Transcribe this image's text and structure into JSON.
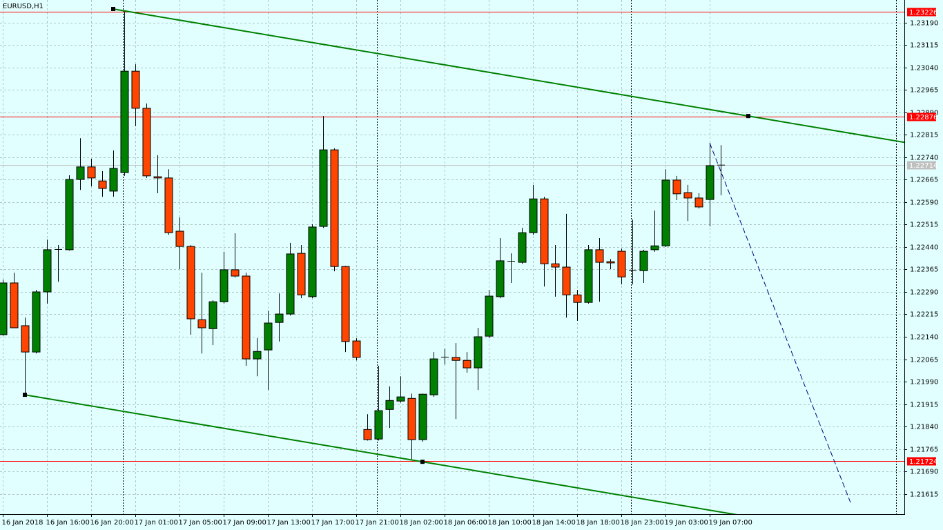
{
  "chart_data": {
    "type": "candlestick",
    "title": "EURUSD,H1",
    "categories": [
      "16 Jan 2018",
      null,
      null,
      null,
      "16 Jan 16:00",
      null,
      null,
      null,
      "16 Jan 20:00",
      null,
      null,
      null,
      "17 Jan 01:00",
      null,
      null,
      null,
      "17 Jan 05:00",
      null,
      null,
      null,
      "17 Jan 09:00",
      null,
      null,
      null,
      "17 Jan 13:00",
      null,
      null,
      null,
      "17 Jan 17:00",
      null,
      null,
      null,
      "17 Jan 21:00",
      null,
      null,
      null,
      "18 Jan 02:00",
      null,
      null,
      null,
      "18 Jan 06:00",
      null,
      null,
      null,
      "18 Jan 10:00",
      null,
      null,
      null,
      "18 Jan 14:00",
      null,
      null,
      null,
      "18 Jan 18:00",
      null,
      null,
      null,
      "18 Jan 23:00",
      null,
      null,
      null,
      "19 Jan 03:00",
      null,
      null,
      null,
      "19 Jan 07:00",
      null
    ],
    "open": [
      1.22147,
      1.2232,
      1.22177,
      1.22089,
      1.2229,
      1.22431,
      1.22431,
      1.22666,
      1.22708,
      1.22661,
      1.22627,
      1.22689,
      1.23028,
      1.22904,
      1.22675,
      1.22671,
      1.22493,
      1.22442,
      1.22197,
      1.22167,
      1.22257,
      1.22364,
      1.22343,
      1.22066,
      1.22096,
      1.22188,
      1.22216,
      1.22419,
      1.22274,
      1.22509,
      1.22765,
      1.22375,
      1.22126,
      1.2183,
      1.21798,
      1.21897,
      1.21925,
      1.21934,
      1.21796,
      1.21946,
      1.22071,
      1.22071,
      1.22061,
      1.22036,
      1.22142,
      1.22274,
      1.22394,
      1.22389,
      1.22488,
      1.22601,
      1.22384,
      1.22373,
      1.2228,
      1.22255,
      1.22431,
      1.22391,
      1.22426,
      1.22361,
      1.22361,
      1.22431,
      1.22444,
      1.22664,
      1.22622,
      1.22604,
      1.22599,
      1.22714
    ],
    "high": [
      1.22331,
      1.22354,
      1.22204,
      1.22297,
      1.22465,
      1.22447,
      1.2268,
      1.22804,
      1.22735,
      1.22694,
      1.22763,
      1.2323,
      1.23051,
      1.2292,
      1.22747,
      1.227,
      1.22539,
      1.22447,
      1.22354,
      1.22262,
      1.22424,
      1.22486,
      1.22354,
      1.22135,
      1.22227,
      1.22285,
      1.22454,
      1.22447,
      1.22516,
      1.22878,
      1.2277,
      1.22377,
      1.22135,
      1.21881,
      1.22043,
      1.21974,
      1.22008,
      1.2195,
      1.2195,
      1.22089,
      1.221,
      1.22119,
      1.22089,
      1.2217,
      1.22297,
      1.2247,
      1.22419,
      1.22504,
      1.22648,
      1.22608,
      1.22447,
      1.22551,
      1.22297,
      1.22447,
      1.2247,
      1.224,
      1.22435,
      1.22532,
      1.22431,
      1.22562,
      1.227,
      1.22678,
      1.22648,
      1.2262,
      1.22788,
      1.22781
    ],
    "low": [
      1.22144,
      1.2217,
      1.21946,
      1.22084,
      1.22251,
      1.22324,
      1.22428,
      1.22631,
      1.22643,
      1.22608,
      1.22608,
      1.22678,
      1.22844,
      1.22671,
      1.2262,
      1.22481,
      1.22366,
      1.22147,
      1.22084,
      1.22112,
      1.22251,
      1.22338,
      1.22043,
      1.22008,
      1.21962,
      1.22124,
      1.22211,
      1.22269,
      1.22269,
      1.22504,
      1.22359,
      1.22089,
      1.22061,
      1.21793,
      1.21793,
      1.21835,
      1.2192,
      1.21731,
      1.21789,
      1.21939,
      1.22047,
      1.21865,
      1.2202,
      1.21962,
      1.22135,
      1.22269,
      1.2232,
      1.22384,
      1.22481,
      1.22308,
      1.22274,
      1.22204,
      1.22193,
      1.22251,
      1.22257,
      1.22366,
      1.22315,
      1.22315,
      1.2232,
      1.22424,
      1.2244,
      1.22597,
      1.22527,
      1.22569,
      1.22509,
      1.22613
    ],
    "close": [
      1.2232,
      1.2217,
      1.22089,
      1.2229,
      1.22431,
      1.22433,
      1.22666,
      1.22708,
      1.22671,
      1.22636,
      1.22703,
      1.23028,
      1.22904,
      1.22678,
      1.22671,
      1.22488,
      1.22442,
      1.222,
      1.2217,
      1.22257,
      1.22364,
      1.22343,
      1.22066,
      1.22091,
      1.22186,
      1.22216,
      1.22417,
      1.2228,
      1.22507,
      1.22765,
      1.22375,
      1.22124,
      1.22071,
      1.21796,
      1.21893,
      1.21927,
      1.21939,
      1.21796,
      1.21948,
      1.22066,
      1.22073,
      1.22061,
      1.22036,
      1.2214,
      1.22276,
      1.22394,
      1.22391,
      1.22488,
      1.22601,
      1.22384,
      1.22373,
      1.2228,
      1.22255,
      1.22431,
      1.22389,
      1.22387,
      1.2234,
      1.22363,
      1.22426,
      1.22444,
      1.22664,
      1.22618,
      1.22604,
      1.22574,
      1.22712,
      1.22714
    ],
    "up_color": "#008000",
    "down_color": "#ff4500",
    "ylim": [
      1.21547,
      1.23266
    ],
    "yticks": [
      {
        "value": 1.2319,
        "label": "1.23190"
      },
      {
        "value": 1.23115,
        "label": "1.23115"
      },
      {
        "value": 1.2304,
        "label": "1.23040"
      },
      {
        "value": 1.22965,
        "label": "1.22965"
      },
      {
        "value": 1.2289,
        "label": "1.22890"
      },
      {
        "value": 1.22815,
        "label": "1.22815"
      },
      {
        "value": 1.2274,
        "label": "1.22740"
      },
      {
        "value": 1.22665,
        "label": "1.22665"
      },
      {
        "value": 1.2259,
        "label": "1.22590"
      },
      {
        "value": 1.22515,
        "label": "1.22515"
      },
      {
        "value": 1.2244,
        "label": "1.22440"
      },
      {
        "value": 1.22365,
        "label": "1.22365"
      },
      {
        "value": 1.2229,
        "label": "1.22290"
      },
      {
        "value": 1.22215,
        "label": "1.22215"
      },
      {
        "value": 1.2214,
        "label": "1.22140"
      },
      {
        "value": 1.22065,
        "label": "1.22065"
      },
      {
        "value": 1.2199,
        "label": "1.21990"
      },
      {
        "value": 1.21915,
        "label": "1.21915"
      },
      {
        "value": 1.2184,
        "label": "1.21840"
      },
      {
        "value": 1.21765,
        "label": "1.21765"
      },
      {
        "value": 1.2169,
        "label": "1.21690"
      },
      {
        "value": 1.21615,
        "label": "1.21615"
      }
    ],
    "grid": true,
    "hlines": [
      {
        "value": 1.23226,
        "color": "#ff0000"
      },
      {
        "value": 1.22876,
        "color": "#ff0000"
      },
      {
        "value": 1.21724,
        "color": "#ff0000"
      }
    ],
    "bid": {
      "value": 1.22714,
      "color": "#c0c0c0"
    },
    "trendlines": [
      {
        "x": [
          10,
          67.5
        ],
        "y": [
          1.23236,
          1.22878
        ],
        "color": "#008000",
        "ray": true
      },
      {
        "x": [
          2,
          38
        ],
        "y": [
          1.21946,
          1.21722
        ],
        "color": "#008000",
        "ray": true
      },
      {
        "x": [
          64,
          76.75
        ],
        "y": [
          1.22788,
          1.21586
        ],
        "color": "#000080",
        "ray": false,
        "dashed": true
      }
    ]
  }
}
